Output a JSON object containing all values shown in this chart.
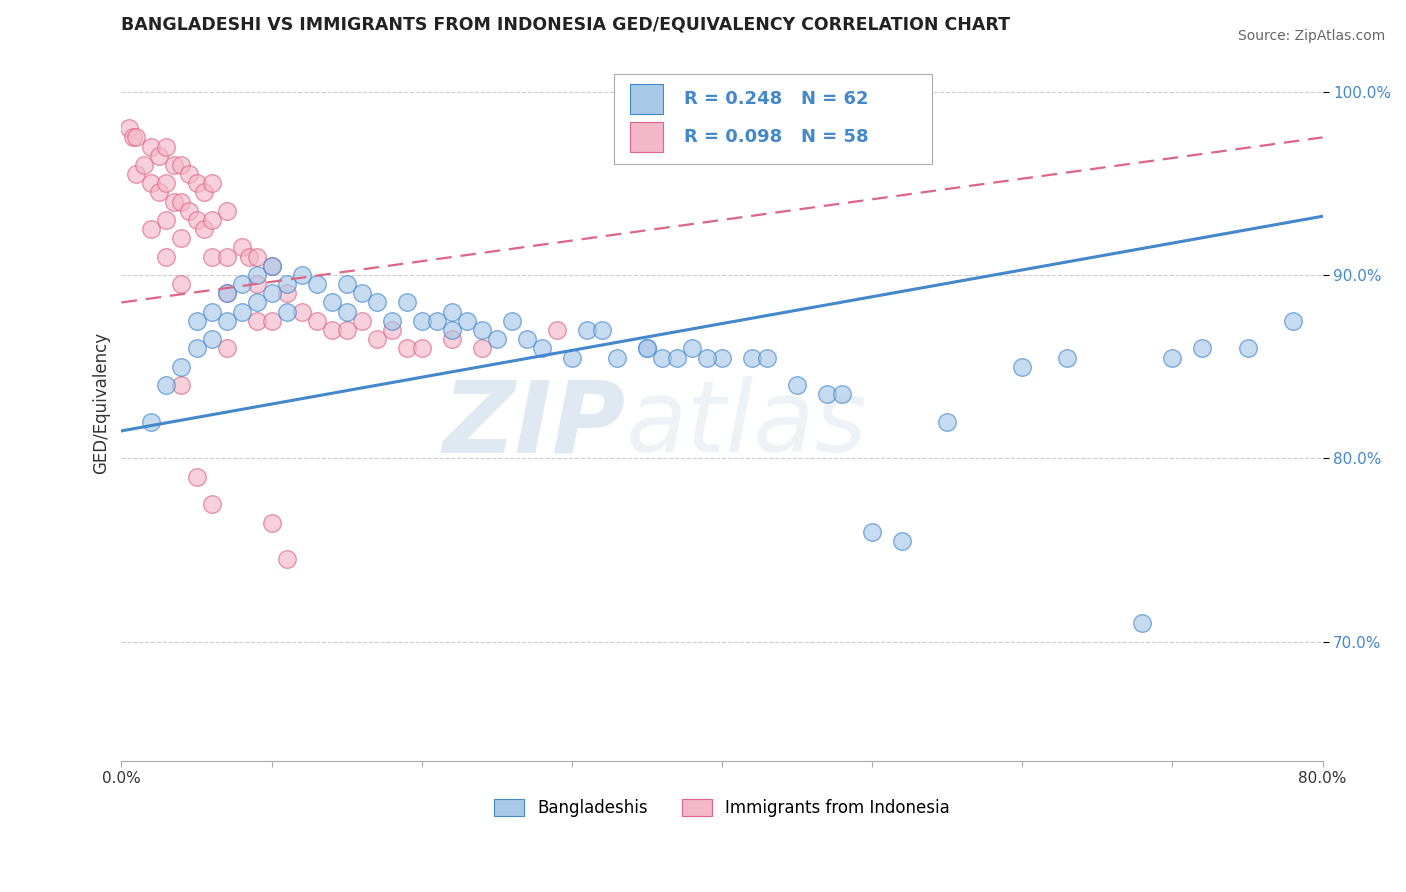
{
  "title": "BANGLADESHI VS IMMIGRANTS FROM INDONESIA GED/EQUIVALENCY CORRELATION CHART",
  "source": "Source: ZipAtlas.com",
  "xlabel": "",
  "ylabel": "GED/Equivalency",
  "xlim": [
    0.0,
    0.8
  ],
  "ylim": [
    0.635,
    1.025
  ],
  "xticks": [
    0.0,
    0.1,
    0.2,
    0.3,
    0.4,
    0.5,
    0.6,
    0.7,
    0.8
  ],
  "xticklabels": [
    "0.0%",
    "",
    "",
    "",
    "",
    "",
    "",
    "",
    "80.0%"
  ],
  "yticks": [
    0.7,
    0.8,
    0.9,
    1.0
  ],
  "blue_color": "#a8c8e8",
  "pink_color": "#f4b8c8",
  "blue_line_color": "#4488cc",
  "pink_line_color": "#dd6688",
  "legend_label1": "Bangladeshis",
  "legend_label2": "Immigrants from Indonesia",
  "watermark_zip": "ZIP",
  "watermark_atlas": "atlas",
  "blue_scatter_x": [
    0.02,
    0.03,
    0.04,
    0.05,
    0.05,
    0.06,
    0.06,
    0.07,
    0.07,
    0.08,
    0.08,
    0.09,
    0.09,
    0.1,
    0.1,
    0.11,
    0.11,
    0.12,
    0.13,
    0.14,
    0.15,
    0.15,
    0.16,
    0.17,
    0.18,
    0.19,
    0.2,
    0.21,
    0.22,
    0.22,
    0.23,
    0.24,
    0.25,
    0.26,
    0.27,
    0.28,
    0.3,
    0.31,
    0.32,
    0.33,
    0.35,
    0.36,
    0.38,
    0.4,
    0.42,
    0.5,
    0.52,
    0.55,
    0.6,
    0.63,
    0.68,
    0.7,
    0.72,
    0.75,
    0.78,
    0.35,
    0.37,
    0.39,
    0.43,
    0.45,
    0.47,
    0.48
  ],
  "blue_scatter_y": [
    0.82,
    0.84,
    0.85,
    0.875,
    0.86,
    0.88,
    0.865,
    0.89,
    0.875,
    0.895,
    0.88,
    0.9,
    0.885,
    0.905,
    0.89,
    0.895,
    0.88,
    0.9,
    0.895,
    0.885,
    0.895,
    0.88,
    0.89,
    0.885,
    0.875,
    0.885,
    0.875,
    0.875,
    0.87,
    0.88,
    0.875,
    0.87,
    0.865,
    0.875,
    0.865,
    0.86,
    0.855,
    0.87,
    0.87,
    0.855,
    0.86,
    0.855,
    0.86,
    0.855,
    0.855,
    0.76,
    0.755,
    0.82,
    0.85,
    0.855,
    0.71,
    0.855,
    0.86,
    0.86,
    0.875,
    0.86,
    0.855,
    0.855,
    0.855,
    0.84,
    0.835,
    0.835
  ],
  "pink_scatter_x": [
    0.005,
    0.008,
    0.01,
    0.01,
    0.015,
    0.02,
    0.02,
    0.02,
    0.025,
    0.025,
    0.03,
    0.03,
    0.03,
    0.03,
    0.035,
    0.035,
    0.04,
    0.04,
    0.04,
    0.04,
    0.045,
    0.045,
    0.05,
    0.05,
    0.055,
    0.055,
    0.06,
    0.06,
    0.06,
    0.07,
    0.07,
    0.07,
    0.08,
    0.085,
    0.09,
    0.09,
    0.1,
    0.11,
    0.12,
    0.13,
    0.14,
    0.15,
    0.16,
    0.17,
    0.18,
    0.19,
    0.2,
    0.22,
    0.24,
    0.07,
    0.09,
    0.1,
    0.05,
    0.06,
    0.1,
    0.11,
    0.29,
    0.04
  ],
  "pink_scatter_y": [
    0.98,
    0.975,
    0.975,
    0.955,
    0.96,
    0.97,
    0.95,
    0.925,
    0.965,
    0.945,
    0.97,
    0.95,
    0.93,
    0.91,
    0.96,
    0.94,
    0.96,
    0.94,
    0.92,
    0.895,
    0.955,
    0.935,
    0.95,
    0.93,
    0.945,
    0.925,
    0.95,
    0.93,
    0.91,
    0.935,
    0.91,
    0.89,
    0.915,
    0.91,
    0.91,
    0.895,
    0.905,
    0.89,
    0.88,
    0.875,
    0.87,
    0.87,
    0.875,
    0.865,
    0.87,
    0.86,
    0.86,
    0.865,
    0.86,
    0.86,
    0.875,
    0.875,
    0.79,
    0.775,
    0.765,
    0.745,
    0.87,
    0.84
  ],
  "blue_trend_x": [
    0.0,
    0.8
  ],
  "blue_trend_y": [
    0.815,
    0.932
  ],
  "pink_trend_x": [
    0.0,
    0.8
  ],
  "pink_trend_y": [
    0.885,
    0.975
  ]
}
